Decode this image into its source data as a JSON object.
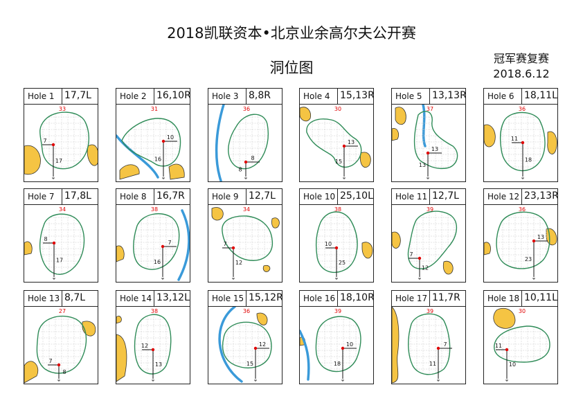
{
  "title": "2018凯联资本•北京业余高尔夫公开赛",
  "subtitle": "洞位图",
  "right_note": {
    "line1": "冠军赛复赛",
    "line2": "2018.6.12"
  },
  "holes": [
    {
      "label": "Hole 1",
      "pin": "17,7L",
      "depth": "33",
      "from_edge": "7",
      "from_front": "17"
    },
    {
      "label": "Hole 2",
      "pin": "16,10R",
      "depth": "31",
      "from_edge": "10",
      "from_front": "16"
    },
    {
      "label": "Hole 3",
      "pin": "8,8R",
      "depth": "36",
      "from_edge": "8",
      "from_front": "8"
    },
    {
      "label": "Hole 4",
      "pin": "15,13R",
      "depth": "30",
      "from_edge": "13",
      "from_front": "15"
    },
    {
      "label": "Hole 5",
      "pin": "13,13R",
      "depth": "37",
      "from_edge": "13",
      "from_front": "13"
    },
    {
      "label": "Hole 6",
      "pin": "18,11L",
      "depth": "36",
      "from_edge": "11",
      "from_front": "18"
    },
    {
      "label": "Hole 7",
      "pin": "17,8L",
      "depth": "34",
      "from_edge": "8",
      "from_front": "17"
    },
    {
      "label": "Hole 8",
      "pin": "16,7R",
      "depth": "38",
      "from_edge": "7",
      "from_front": "16"
    },
    {
      "label": "Hole 9",
      "pin": "12,7L",
      "depth": "34",
      "from_edge": "7",
      "from_front": "12"
    },
    {
      "label": "Hole 10",
      "pin": "25,10L",
      "depth": "38",
      "from_edge": "10",
      "from_front": "25"
    },
    {
      "label": "Hole 11",
      "pin": "12,7L",
      "depth": "39",
      "from_edge": "7",
      "from_front": "12"
    },
    {
      "label": "Hole 12",
      "pin": "23,13R",
      "depth": "36",
      "from_edge": "13",
      "from_front": "23"
    },
    {
      "label": "Hole 13",
      "pin": "8,7L",
      "depth": "27",
      "from_edge": "7",
      "from_front": "8"
    },
    {
      "label": "Hole 14",
      "pin": "13,12L",
      "depth": "38",
      "from_edge": "12",
      "from_front": "13"
    },
    {
      "label": "Hole 15",
      "pin": "15,12R",
      "depth": "36",
      "from_edge": "12",
      "from_front": "15"
    },
    {
      "label": "Hole 16",
      "pin": "18,10R",
      "depth": "39",
      "from_edge": "10",
      "from_front": "18"
    },
    {
      "label": "Hole 17",
      "pin": "11,7R",
      "depth": "39",
      "from_edge": "7",
      "from_front": "11"
    },
    {
      "label": "Hole 18",
      "pin": "10,11L",
      "depth": "30",
      "from_edge": "11",
      "from_front": "10"
    }
  ],
  "colors": {
    "green_outline": "#2e8b57",
    "pin": "#e00000",
    "bunker": "#f5c443",
    "water": "#3a9ad9",
    "grid": "#c8c8c8"
  }
}
